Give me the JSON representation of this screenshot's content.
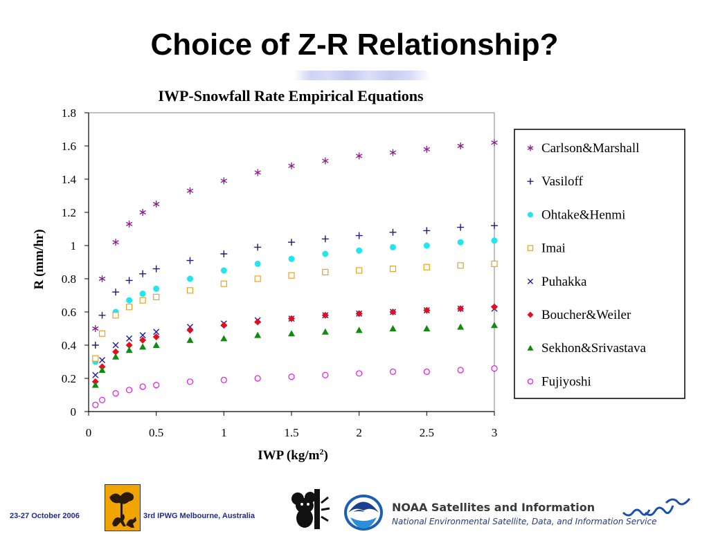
{
  "slide": {
    "title": "Choice of Z-R Relationship?",
    "footer_date": "23-27 October 2006",
    "footer_event": "3rd IPWG  Melbourne, Australia",
    "noaa_title": "NOAA Satellites and Information",
    "noaa_subtitle": "National Environmental Satellite, Data, and Information Service"
  },
  "chart_data": {
    "type": "scatter",
    "title": "IWP-Snowfall Rate Empirical Equations",
    "xlabel": "IWP (kg/m",
    "xlabel_sup": "2",
    "xlabel_suffix": ")",
    "ylabel": "R (mm/hr)",
    "xlim": [
      0,
      3
    ],
    "ylim": [
      0,
      1.8
    ],
    "xticks": [
      "0",
      "0.5",
      "1",
      "1.5",
      "2",
      "2.5",
      "3"
    ],
    "yticks": [
      "0",
      "0.2",
      "0.4",
      "0.6",
      "0.8",
      "1",
      "1.2",
      "1.4",
      "1.6",
      "1.8"
    ],
    "legend_position": "right",
    "x": [
      0.05,
      0.1,
      0.2,
      0.3,
      0.4,
      0.5,
      0.75,
      1.0,
      1.25,
      1.5,
      1.75,
      2.0,
      2.25,
      2.5,
      2.75,
      3.0
    ],
    "series": [
      {
        "name": "Carlson&Marshall",
        "marker": "asterisk",
        "color": "#8b1a8b",
        "values": [
          0.5,
          0.8,
          1.02,
          1.13,
          1.2,
          1.25,
          1.33,
          1.39,
          1.44,
          1.48,
          1.51,
          1.54,
          1.56,
          1.58,
          1.6,
          1.62
        ]
      },
      {
        "name": "Vasiloff",
        "marker": "plus",
        "color": "#1a1a7a",
        "values": [
          0.4,
          0.58,
          0.72,
          0.79,
          0.83,
          0.86,
          0.91,
          0.95,
          0.99,
          1.02,
          1.04,
          1.06,
          1.08,
          1.09,
          1.11,
          1.12
        ]
      },
      {
        "name": "Ohtake&Henmi",
        "marker": "circle-filled",
        "color": "#22e5ee",
        "values": [
          0.3,
          0.47,
          0.6,
          0.67,
          0.71,
          0.74,
          0.8,
          0.85,
          0.89,
          0.92,
          0.95,
          0.97,
          0.99,
          1.0,
          1.02,
          1.03
        ]
      },
      {
        "name": "Imai",
        "marker": "square-open",
        "color": "#f0a020",
        "values": [
          0.32,
          0.47,
          0.58,
          0.63,
          0.67,
          0.69,
          0.73,
          0.77,
          0.8,
          0.82,
          0.84,
          0.85,
          0.86,
          0.87,
          0.88,
          0.89
        ]
      },
      {
        "name": "Puhakka",
        "marker": "cross",
        "color": "#1a1aa8",
        "values": [
          0.22,
          0.31,
          0.4,
          0.44,
          0.46,
          0.48,
          0.51,
          0.53,
          0.55,
          0.56,
          0.58,
          0.59,
          0.6,
          0.61,
          0.62,
          0.62
        ]
      },
      {
        "name": "Boucher&Weiler",
        "marker": "diamond",
        "color": "#e01020",
        "values": [
          0.18,
          0.27,
          0.36,
          0.4,
          0.43,
          0.45,
          0.49,
          0.52,
          0.54,
          0.56,
          0.58,
          0.59,
          0.6,
          0.61,
          0.62,
          0.63
        ]
      },
      {
        "name": "Sekhon&Srivastava",
        "marker": "triangle",
        "color": "#108a10",
        "values": [
          0.16,
          0.25,
          0.33,
          0.37,
          0.39,
          0.4,
          0.43,
          0.44,
          0.46,
          0.47,
          0.48,
          0.49,
          0.5,
          0.5,
          0.51,
          0.52
        ]
      },
      {
        "name": "Fujiyoshi",
        "marker": "circle-open",
        "color": "#ee10ee",
        "values": [
          0.04,
          0.07,
          0.11,
          0.13,
          0.15,
          0.16,
          0.18,
          0.19,
          0.2,
          0.21,
          0.22,
          0.23,
          0.24,
          0.24,
          0.25,
          0.26
        ]
      }
    ]
  }
}
